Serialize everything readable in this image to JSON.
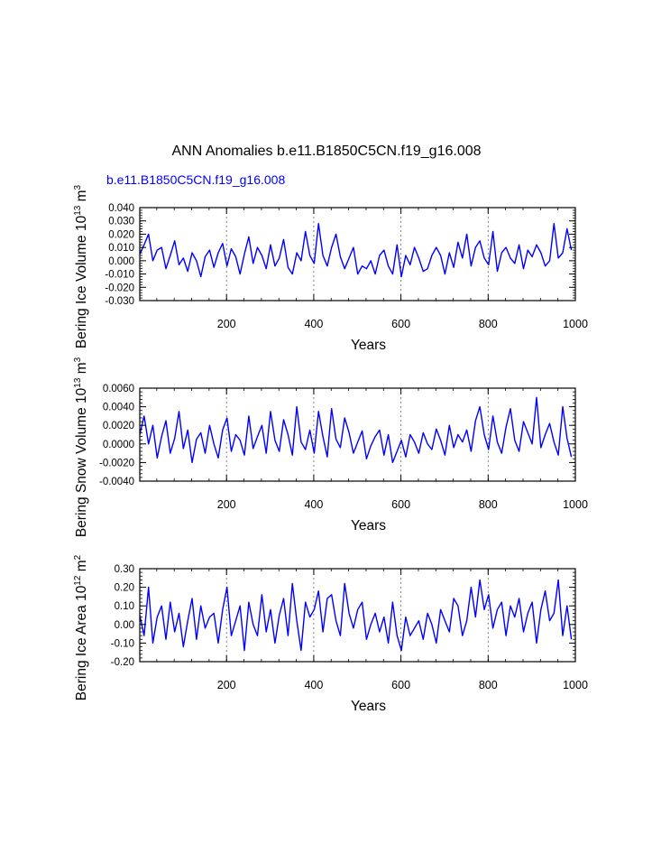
{
  "figure": {
    "title": "ANN Anomalies b.e11.B1850C5CN.f19_g16.008",
    "subtitle": "b.e11.B1850C5CN.f19_g16.008",
    "line_color": "#0000ff"
  },
  "chart_data": [
    {
      "type": "line",
      "title": "",
      "xlabel": "Years",
      "ylabel_parts": [
        "Bering Ice Volume 10",
        "13",
        " m",
        "3"
      ],
      "xlim": [
        1,
        1000
      ],
      "ylim": [
        -0.03,
        0.04
      ],
      "xticks": [
        200,
        400,
        600,
        800,
        1000
      ],
      "xtick_labels": [
        "200",
        "400",
        "600",
        "800",
        "1000"
      ],
      "yticks": [
        -0.03,
        -0.02,
        -0.01,
        0.0,
        0.01,
        0.02,
        0.03,
        0.04
      ],
      "ytick_labels": [
        "-0.030",
        "-0.020",
        "-0.010",
        "0.000",
        "0.010",
        "0.020",
        "0.030",
        "0.040"
      ],
      "series": [
        {
          "name": "Bering Ice Volume",
          "x_start": 1,
          "x_step": 10,
          "values": [
            0.005,
            0.012,
            0.02,
            0.0,
            0.008,
            0.01,
            -0.006,
            0.004,
            0.015,
            -0.003,
            0.002,
            -0.008,
            0.006,
            0.0,
            -0.012,
            0.003,
            0.008,
            -0.005,
            0.006,
            0.013,
            -0.004,
            0.009,
            0.003,
            -0.01,
            0.005,
            0.018,
            -0.002,
            0.01,
            0.004,
            -0.006,
            0.012,
            -0.004,
            0.002,
            0.016,
            -0.005,
            -0.01,
            0.006,
            0.0,
            0.022,
            0.004,
            -0.002,
            0.028,
            0.004,
            -0.004,
            0.01,
            0.02,
            0.003,
            -0.006,
            0.002,
            0.01,
            -0.01,
            -0.004,
            -0.006,
            0.0,
            -0.01,
            0.004,
            0.008,
            -0.004,
            -0.01,
            0.012,
            -0.012,
            0.004,
            -0.003,
            0.01,
            0.002,
            -0.008,
            -0.006,
            0.004,
            0.01,
            0.004,
            -0.01,
            0.006,
            -0.005,
            0.014,
            0.002,
            0.02,
            -0.004,
            0.01,
            0.015,
            0.002,
            -0.003,
            0.022,
            -0.008,
            0.006,
            0.01,
            0.002,
            -0.002,
            0.012,
            -0.006,
            0.008,
            0.003,
            0.012,
            0.006,
            -0.004,
            0.0,
            0.028,
            0.002,
            0.006,
            0.024,
            0.008
          ]
        }
      ]
    },
    {
      "type": "line",
      "title": "",
      "xlabel": "Years",
      "ylabel_parts": [
        "Bering Snow Volume 10",
        "13",
        " m",
        "3"
      ],
      "xlim": [
        1,
        1000
      ],
      "ylim": [
        -0.004,
        0.006
      ],
      "xticks": [
        200,
        400,
        600,
        800,
        1000
      ],
      "xtick_labels": [
        "200",
        "400",
        "600",
        "800",
        "1000"
      ],
      "yticks": [
        -0.004,
        -0.002,
        0.0,
        0.002,
        0.004,
        0.006
      ],
      "ytick_labels": [
        "-0.0040",
        "-0.0020",
        "0.0000",
        "0.0020",
        "0.0040",
        "0.0060"
      ],
      "series": [
        {
          "name": "Bering Snow Volume",
          "x_start": 1,
          "x_step": 10,
          "values": [
            0.001,
            0.003,
            0.0,
            0.002,
            -0.0015,
            0.0008,
            0.0025,
            -0.001,
            0.0006,
            0.0035,
            -0.0005,
            0.0015,
            -0.002,
            0.0005,
            0.0012,
            -0.001,
            0.002,
            0.0,
            -0.0015,
            0.0015,
            0.0028,
            -0.0008,
            0.001,
            0.0004,
            -0.0012,
            0.003,
            -0.0005,
            0.0008,
            0.002,
            -0.001,
            0.0035,
            0.0004,
            -0.0008,
            0.0026,
            0.001,
            -0.0012,
            0.004,
            0.0002,
            -0.0006,
            0.0015,
            -0.001,
            0.0035,
            0.0008,
            -0.0014,
            0.0038,
            0.0005,
            -0.0004,
            0.0028,
            0.0012,
            -0.001,
            0.0002,
            0.0014,
            -0.0016,
            -0.0002,
            0.0008,
            0.0015,
            -0.0012,
            0.001,
            -0.002,
            -0.0008,
            0.0004,
            -0.0014,
            0.001,
            0.0002,
            -0.001,
            0.0012,
            0.0,
            -0.0006,
            0.0016,
            0.0004,
            -0.0012,
            0.002,
            -0.0004,
            0.001,
            0.0002,
            0.0015,
            -0.0008,
            0.0025,
            0.004,
            0.001,
            -0.0006,
            0.003,
            0.0002,
            -0.001,
            0.0018,
            0.0038,
            0.0004,
            -0.0008,
            0.0024,
            0.0012,
            0.0,
            0.005,
            -0.0004,
            0.001,
            0.0022,
            0.0002,
            -0.0012,
            0.004,
            0.0006,
            -0.0014
          ]
        }
      ]
    },
    {
      "type": "line",
      "title": "",
      "xlabel": "Years",
      "ylabel_parts": [
        "Bering Ice Area 10",
        "12",
        " m",
        "2"
      ],
      "xlim": [
        1,
        1000
      ],
      "ylim": [
        -0.2,
        0.3
      ],
      "xticks": [
        200,
        400,
        600,
        800,
        1000
      ],
      "xtick_labels": [
        "200",
        "400",
        "600",
        "800",
        "1000"
      ],
      "yticks": [
        -0.2,
        -0.1,
        0.0,
        0.1,
        0.2,
        0.3
      ],
      "ytick_labels": [
        "-0.20",
        "-0.10",
        "0.00",
        "0.10",
        "0.20",
        "0.30"
      ],
      "series": [
        {
          "name": "Bering Ice Area",
          "x_start": 1,
          "x_step": 10,
          "values": [
            0.05,
            -0.06,
            0.2,
            -0.1,
            0.04,
            0.1,
            -0.08,
            0.12,
            -0.04,
            0.06,
            -0.12,
            0.02,
            0.14,
            -0.08,
            0.1,
            -0.02,
            0.04,
            0.06,
            -0.1,
            0.08,
            0.2,
            -0.06,
            0.02,
            0.1,
            -0.14,
            0.12,
            0.0,
            -0.06,
            0.16,
            -0.04,
            0.08,
            -0.1,
            0.05,
            0.14,
            -0.06,
            0.22,
            0.02,
            -0.14,
            0.12,
            0.04,
            0.08,
            0.18,
            -0.04,
            0.14,
            0.16,
            0.02,
            -0.06,
            0.22,
            0.06,
            -0.02,
            0.08,
            0.12,
            -0.08,
            0.0,
            0.06,
            -0.04,
            0.04,
            -0.1,
            0.12,
            -0.06,
            -0.14,
            0.04,
            -0.06,
            -0.02,
            0.02,
            -0.08,
            0.06,
            0.0,
            -0.1,
            0.08,
            0.02,
            -0.04,
            0.14,
            0.1,
            -0.06,
            0.02,
            0.2,
            0.04,
            0.24,
            0.08,
            0.16,
            -0.02,
            0.08,
            0.12,
            -0.06,
            0.1,
            0.04,
            0.14,
            -0.04,
            0.06,
            0.12,
            -0.1,
            0.08,
            0.18,
            0.02,
            0.06,
            0.24,
            -0.06,
            0.1,
            -0.08
          ]
        }
      ]
    }
  ]
}
